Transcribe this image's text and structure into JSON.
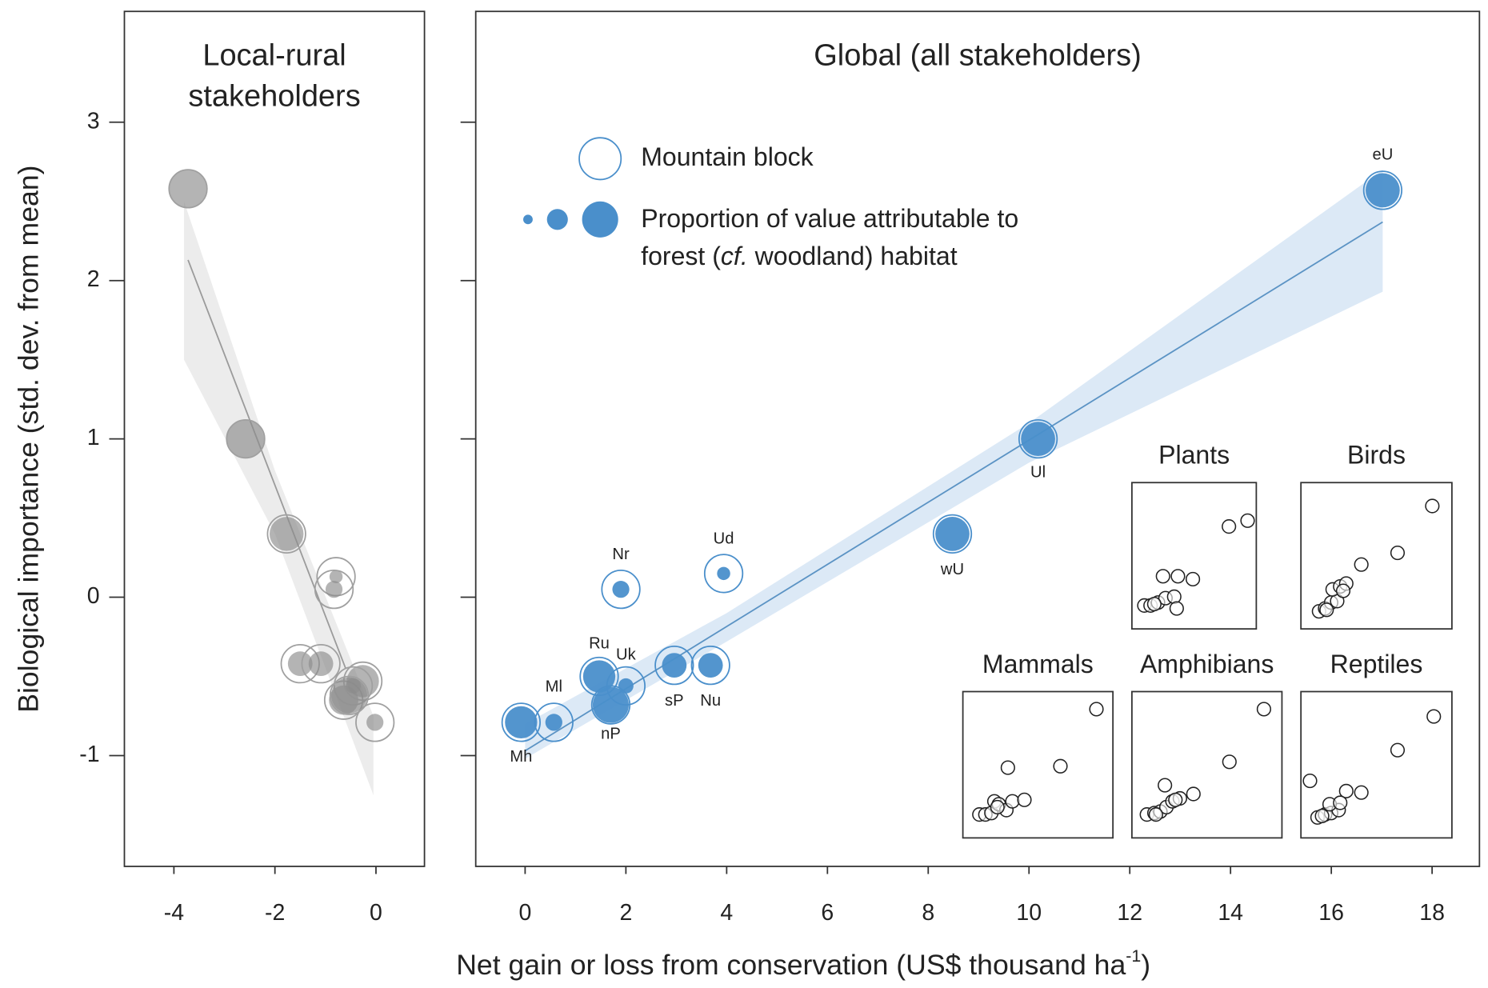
{
  "y_label": "Biological importance (std. dev. from mean)",
  "x_label": {
    "text": "Net gain or loss from conservation (US$ thousand ha",
    "superscript": "-1",
    "suffix": ")"
  },
  "chart_data": [
    {
      "type": "bubble",
      "title": [
        "Local-rural",
        "stakeholders"
      ],
      "x": [
        -3.72,
        -2.58,
        -1.77,
        -0.79,
        -0.83,
        -1.5,
        -1.09,
        -0.64,
        -0.26,
        -0.45,
        -0.02,
        -0.53
      ],
      "y": [
        2.58,
        1.0,
        0.4,
        0.13,
        0.05,
        -0.42,
        -0.42,
        -0.65,
        -0.53,
        -0.56,
        -0.79,
        -0.62
      ],
      "sizes": [
        1.0,
        1.0,
        0.8,
        0.12,
        0.2,
        0.42,
        0.42,
        0.6,
        0.72,
        0.16,
        0.2,
        0.9
      ],
      "color": "#8c8c8c",
      "ring_color": "#a0a0a0",
      "line_color": "#9a9a9a",
      "band_color": "#ececec",
      "trend": {
        "x": [
          -3.72,
          -0.6
        ],
        "y": [
          2.13,
          -0.45
        ]
      },
      "band": {
        "x": [
          -3.8,
          -2,
          -0.05
        ],
        "lower": [
          1.5,
          0.4,
          -1.25
        ],
        "upper": [
          2.5,
          0.8,
          -0.75
        ]
      },
      "xlim": [
        -4.98,
        0.96
      ],
      "ylim": [
        -1.7,
        3.7
      ],
      "xticks": [
        -4,
        -2,
        0
      ],
      "yticks": [
        -1,
        0,
        1,
        2,
        3
      ],
      "show_ytick_labels": true
    },
    {
      "type": "bubble",
      "title": [
        "Global (all stakeholders)"
      ],
      "x": [
        -0.08,
        0.57,
        1.47,
        2.0,
        1.7,
        2.96,
        3.68,
        1.9,
        3.94,
        8.48,
        10.18,
        17.02
      ],
      "y": [
        -0.79,
        -0.79,
        -0.5,
        -0.56,
        -0.68,
        -0.43,
        -0.43,
        0.05,
        0.15,
        0.4,
        1.0,
        2.57
      ],
      "sizes": [
        0.72,
        0.2,
        0.72,
        0.16,
        0.9,
        0.42,
        0.42,
        0.2,
        0.12,
        0.81,
        0.81,
        0.81
      ],
      "labels": [
        "Mh",
        "Ml",
        "Ru",
        "Uk",
        "nP",
        "sP",
        "Nu",
        "Nr",
        "Ud",
        "wU",
        "Ul",
        "eU"
      ],
      "color": "#4a8fcb",
      "ring_color": "#4a8fcb",
      "line_color": "#5b93c4",
      "band_color": "#dce9f6",
      "trend": {
        "x": [
          0,
          17.02
        ],
        "y": [
          -0.97,
          2.37
        ]
      },
      "band": {
        "x": [
          0,
          4,
          10,
          17.02
        ],
        "lower": [
          -1.02,
          -0.28,
          0.85,
          1.93
        ],
        "upper": [
          -0.8,
          -0.1,
          1.1,
          2.7
        ]
      },
      "xlim": [
        -0.98,
        18.94
      ],
      "ylim": [
        -1.7,
        3.7
      ],
      "xticks": [
        0,
        2,
        4,
        6,
        8,
        10,
        12,
        14,
        16,
        18
      ],
      "yticks": [
        -1,
        0,
        1,
        2,
        3
      ],
      "show_ytick_labels": false,
      "legend": {
        "mountain_block": "Mountain block",
        "forest_line1": "Proportion of value attributable to",
        "forest_line2_start": "forest (",
        "forest_line2_italic": "cf.",
        "forest_line2_end": " woodland) habitat"
      }
    },
    {
      "type": "scatter",
      "title": "Plants",
      "xlim": [
        0,
        100
      ],
      "ylim": [
        0,
        100
      ],
      "x": [
        10,
        15,
        21,
        27,
        34,
        36,
        25,
        37,
        49,
        78,
        93,
        18
      ],
      "y": [
        16,
        16,
        18,
        21,
        22,
        14,
        36,
        36,
        34,
        70,
        74,
        17
      ]
    },
    {
      "type": "scatter",
      "title": "Birds",
      "xlim": [
        0,
        100
      ],
      "ylim": [
        0,
        100
      ],
      "x": [
        12,
        16,
        20,
        24,
        21,
        26,
        30,
        40,
        64,
        87,
        17,
        28
      ],
      "y": [
        12,
        14,
        18,
        19,
        27,
        29,
        31,
        44,
        52,
        84,
        13,
        26
      ]
    },
    {
      "type": "scatter",
      "title": "Mammals",
      "xlim": [
        0,
        100
      ],
      "ylim": [
        0,
        100
      ],
      "x": [
        11,
        15,
        19,
        21,
        24,
        29,
        33,
        41,
        30,
        65,
        89,
        23
      ],
      "y": [
        16,
        16,
        17,
        25,
        23,
        19,
        25,
        26,
        48,
        49,
        88,
        21
      ]
    },
    {
      "type": "scatter",
      "title": "Amphibians",
      "xlim": [
        0,
        100
      ],
      "ylim": [
        0,
        100
      ],
      "x": [
        10,
        15,
        19,
        23,
        27,
        32,
        41,
        22,
        65,
        88,
        16,
        29
      ],
      "y": [
        16,
        17,
        18,
        21,
        25,
        27,
        30,
        36,
        52,
        88,
        16,
        26
      ]
    },
    {
      "type": "scatter",
      "title": "Reptiles",
      "xlim": [
        0,
        100
      ],
      "ylim": [
        0,
        100
      ],
      "x": [
        11,
        16,
        20,
        25,
        19,
        30,
        40,
        6,
        64,
        88,
        14,
        26
      ],
      "y": [
        14,
        16,
        17,
        19,
        23,
        32,
        31,
        39,
        60,
        83,
        15,
        24
      ]
    }
  ]
}
